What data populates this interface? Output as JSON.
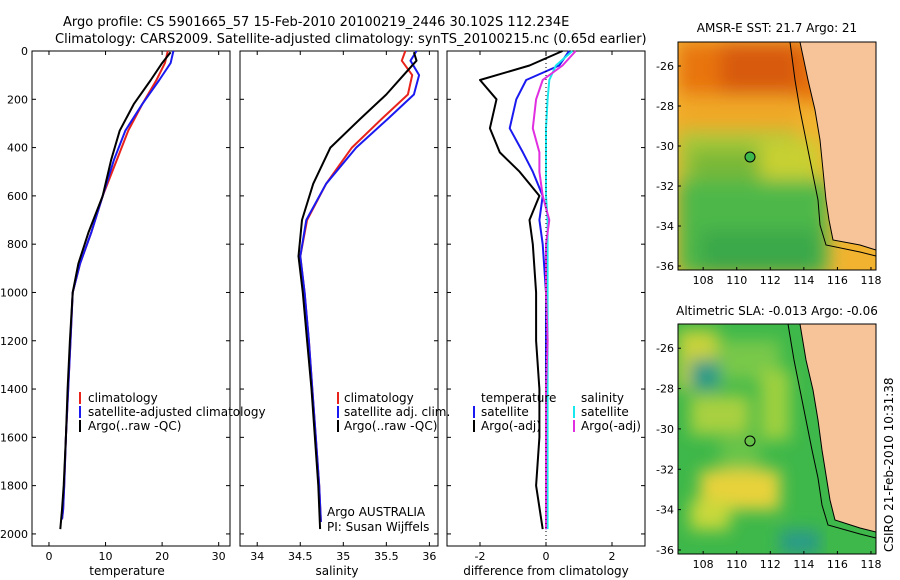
{
  "header": {
    "line1": "Argo profile: CS 5901665_57 15-Feb-2010 20100219_2446 30.102S 112.234E",
    "line2": "Climatology: CARS2009. Satellite-adjusted climatology: synTS_20100215.nc (0.65d earlier)"
  },
  "side_label": "CSIRO 21-Feb-2010 10:31:38",
  "colors": {
    "climatology": "#e8231b",
    "satellite": "#1a1af0",
    "argo": "#000000",
    "sat_salinity": "#17e8ee",
    "argo_salinity": "#e02ee0",
    "land": "#f7c49a"
  },
  "chart_data": [
    {
      "type": "line",
      "id": "temperature",
      "xlabel": "temperature",
      "xlim": [
        -3,
        32
      ],
      "xticks": [
        0,
        10,
        20,
        30
      ],
      "ylim": [
        2050,
        0
      ],
      "yticks": [
        0,
        200,
        400,
        600,
        800,
        1000,
        1200,
        1400,
        1600,
        1800,
        2000
      ],
      "legend": [
        "climatology",
        "satellite-adjusted climatology",
        "Argo(..raw -QC)"
      ],
      "series": [
        {
          "name": "climatology",
          "color": "#e8231b",
          "x": [
            21.0,
            20.5,
            19.0,
            16.5,
            14.0,
            12.0,
            9.5,
            7.5,
            5.5,
            4.2,
            3.8,
            3.4,
            3.0,
            2.7,
            2.5,
            2.3
          ],
          "y": [
            0,
            50,
            120,
            220,
            330,
            450,
            600,
            750,
            880,
            1000,
            1200,
            1400,
            1600,
            1800,
            1900,
            1940
          ]
        },
        {
          "name": "satellite-adjusted climatology",
          "color": "#1a1af0",
          "x": [
            22.0,
            21.5,
            19.5,
            16.5,
            13.5,
            11.5,
            9.5,
            7.5,
            5.5,
            4.2,
            3.8,
            3.4,
            3.0,
            2.7,
            2.5,
            2.3
          ],
          "y": [
            0,
            50,
            120,
            220,
            330,
            450,
            600,
            750,
            880,
            1000,
            1200,
            1400,
            1600,
            1800,
            1900,
            1940
          ]
        },
        {
          "name": "Argo(..raw -QC)",
          "color": "#000000",
          "x": [
            21.5,
            20.0,
            18.0,
            15.0,
            12.5,
            11.0,
            9.5,
            7.0,
            5.2,
            4.2,
            3.7,
            3.3,
            3.0,
            2.6,
            2.3,
            2.0
          ],
          "y": [
            5,
            50,
            120,
            220,
            330,
            450,
            600,
            750,
            880,
            1000,
            1200,
            1400,
            1600,
            1800,
            1900,
            1980
          ]
        }
      ]
    },
    {
      "type": "line",
      "id": "salinity",
      "xlabel": "salinity",
      "xlim": [
        33.8,
        36.1
      ],
      "xticks": [
        34,
        34.5,
        35,
        35.5,
        36
      ],
      "ylim": [
        2050,
        0
      ],
      "legend": [
        "climatology",
        "satellite adj. clim.",
        "Argo(..raw -QC)"
      ],
      "annotation": [
        "Argo AUSTRALIA",
        "PI: Susan Wijffels"
      ],
      "series": [
        {
          "name": "climatology",
          "color": "#e8231b",
          "x": [
            35.72,
            35.68,
            35.8,
            35.75,
            35.45,
            35.1,
            34.8,
            34.58,
            34.5,
            34.55,
            34.6,
            34.64,
            34.68,
            34.72,
            34.74
          ],
          "y": [
            0,
            40,
            100,
            180,
            280,
            400,
            550,
            700,
            850,
            1000,
            1200,
            1400,
            1600,
            1800,
            1950
          ]
        },
        {
          "name": "satellite adj. clim.",
          "color": "#1a1af0",
          "x": [
            35.85,
            35.78,
            35.88,
            35.82,
            35.52,
            35.15,
            34.8,
            34.57,
            34.5,
            34.55,
            34.6,
            34.64,
            34.68,
            34.72,
            34.74
          ],
          "y": [
            0,
            40,
            100,
            180,
            280,
            400,
            550,
            700,
            850,
            1000,
            1200,
            1400,
            1600,
            1800,
            1950
          ]
        },
        {
          "name": "Argo(..raw -QC)",
          "color": "#000000",
          "x": [
            35.82,
            35.85,
            35.7,
            35.5,
            35.2,
            34.85,
            34.65,
            34.52,
            34.48,
            34.53,
            34.58,
            34.63,
            34.67,
            34.71,
            34.73
          ],
          "y": [
            5,
            40,
            100,
            180,
            280,
            400,
            550,
            700,
            850,
            1000,
            1200,
            1400,
            1600,
            1800,
            1980
          ]
        }
      ]
    },
    {
      "type": "line",
      "id": "difference",
      "xlabel": "difference from climatology",
      "xlim": [
        -3,
        3
      ],
      "xticks": [
        -2,
        0,
        2
      ],
      "ylim": [
        2050,
        0
      ],
      "legend_left": [
        "temperature",
        "satellite",
        "Argo(-adj)"
      ],
      "legend_right": [
        "salinity",
        "satellite",
        "Argo(-adj)"
      ],
      "series": [
        {
          "name": "temperature satellite",
          "color": "#1a1af0",
          "x": [
            0.7,
            0.4,
            -0.6,
            -0.9,
            -1.1,
            -0.7,
            -0.4,
            -0.1,
            -0.2,
            -0.1,
            0.0,
            0.0,
            0.0,
            0.0,
            0.0,
            0.0
          ],
          "y": [
            0,
            60,
            120,
            200,
            320,
            420,
            500,
            600,
            700,
            800,
            1000,
            1200,
            1400,
            1600,
            1800,
            1980
          ]
        },
        {
          "name": "temperature Argo(-adj)",
          "color": "#000000",
          "x": [
            0.5,
            -0.5,
            -2.0,
            -1.5,
            -1.7,
            -1.4,
            -0.8,
            -0.2,
            -0.5,
            -0.4,
            -0.3,
            -0.3,
            -0.2,
            -0.2,
            -0.3,
            -0.1
          ],
          "y": [
            0,
            60,
            120,
            200,
            320,
            420,
            500,
            600,
            700,
            800,
            1000,
            1200,
            1400,
            1600,
            1800,
            1980
          ]
        },
        {
          "name": "salinity satellite",
          "color": "#17e8ee",
          "x": [
            0.8,
            0.3,
            0.1,
            0.05,
            0.0,
            0.0,
            0.0,
            0.0,
            0.05,
            0.05,
            0.05,
            0.05,
            0.05,
            0.05,
            0.05,
            0.05
          ],
          "y": [
            0,
            60,
            120,
            200,
            320,
            420,
            500,
            600,
            700,
            800,
            1000,
            1200,
            1400,
            1600,
            1800,
            1980
          ]
        },
        {
          "name": "salinity Argo(-adj)",
          "color": "#e02ee0",
          "x": [
            0.9,
            0.5,
            -0.1,
            -0.3,
            -0.4,
            -0.2,
            -0.2,
            -0.1,
            0.1,
            0.0,
            0.0,
            0.05,
            0.0,
            0.0,
            0.0,
            0.0
          ],
          "y": [
            0,
            60,
            120,
            200,
            320,
            420,
            500,
            600,
            700,
            800,
            1000,
            1200,
            1400,
            1600,
            1800,
            1980
          ]
        }
      ]
    },
    {
      "type": "heatmap",
      "id": "sst_map",
      "title": "AMSR-E SST: 21.7 Argo: 21",
      "xticks": [
        108,
        110,
        112,
        114,
        116,
        118
      ],
      "yticks": [
        -26,
        -28,
        -30,
        -32,
        -34,
        -36
      ],
      "xlim": [
        106.5,
        118.3
      ],
      "ylim": [
        -36.2,
        -24.8
      ],
      "argo_position": {
        "lon": 112.234,
        "lat": -30.102
      }
    },
    {
      "type": "heatmap",
      "id": "sla_map",
      "title": "Altimetric SLA: -0.013 Argo: -0.06",
      "xticks": [
        108,
        110,
        112,
        114,
        116,
        118
      ],
      "yticks": [
        -26,
        -28,
        -30,
        -32,
        -34,
        -36
      ],
      "xlim": [
        106.5,
        118.3
      ],
      "ylim": [
        -36.2,
        -24.8
      ],
      "argo_position": {
        "lon": 112.234,
        "lat": -30.102
      }
    }
  ]
}
